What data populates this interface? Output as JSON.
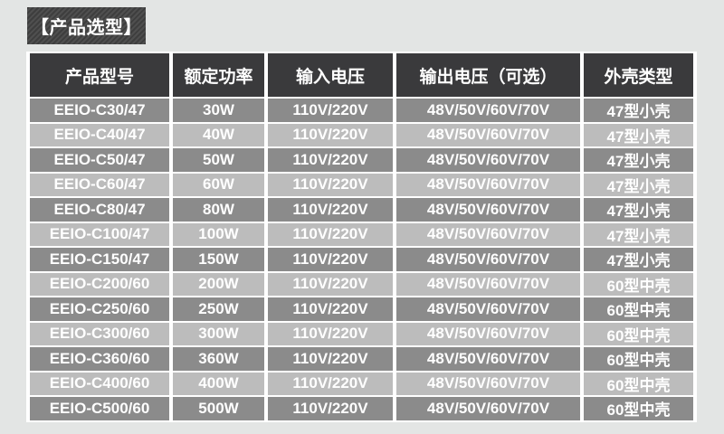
{
  "page": {
    "background": "#e3e5e4"
  },
  "title": {
    "label": "【产品选型】",
    "text_color": "#ffffff",
    "badge_colors": [
      "#3e3e3e",
      "#4f4f4f"
    ]
  },
  "table": {
    "colors": {
      "header_bg": "#3a3a3c",
      "row_dark": "#8b8b8b",
      "row_light": "#bcbcbc",
      "separator": "#ffffff",
      "text": "#ffffff"
    },
    "columns": [
      {
        "key": "model",
        "label": "产品型号"
      },
      {
        "key": "rated_power",
        "label": "额定功率"
      },
      {
        "key": "input_voltage",
        "label": "输入电压"
      },
      {
        "key": "output_voltage",
        "label": "输出电压（可选）"
      },
      {
        "key": "case_type",
        "label": "外壳类型"
      }
    ],
    "rows": [
      [
        "EEIO-C30/47",
        "30W",
        "110V/220V",
        "48V/50V/60V/70V",
        "47型小壳"
      ],
      [
        "EEIO-C40/47",
        "40W",
        "110V/220V",
        "48V/50V/60V/70V",
        "47型小壳"
      ],
      [
        "EEIO-C50/47",
        "50W",
        "110V/220V",
        "48V/50V/60V/70V",
        "47型小壳"
      ],
      [
        "EEIO-C60/47",
        "60W",
        "110V/220V",
        "48V/50V/60V/70V",
        "47型小壳"
      ],
      [
        "EEIO-C80/47",
        "80W",
        "110V/220V",
        "48V/50V/60V/70V",
        "47型小壳"
      ],
      [
        "EEIO-C100/47",
        "100W",
        "110V/220V",
        "48V/50V/60V/70V",
        "47型小壳"
      ],
      [
        "EEIO-C150/47",
        "150W",
        "110V/220V",
        "48V/50V/60V/70V",
        "47型小壳"
      ],
      [
        "EEIO-C200/60",
        "200W",
        "110V/220V",
        "48V/50V/60V/70V",
        "60型中壳"
      ],
      [
        "EEIO-C250/60",
        "250W",
        "110V/220V",
        "48V/50V/60V/70V",
        "60型中壳"
      ],
      [
        "EEIO-C300/60",
        "300W",
        "110V/220V",
        "48V/50V/60V/70V",
        "60型中壳"
      ],
      [
        "EEIO-C360/60",
        "360W",
        "110V/220V",
        "48V/50V/60V/70V",
        "60型中壳"
      ],
      [
        "EEIO-C400/60",
        "400W",
        "110V/220V",
        "48V/50V/60V/70V",
        "60型中壳"
      ],
      [
        "EEIO-C500/60",
        "500W",
        "110V/220V",
        "48V/50V/60V/70V",
        "60型中壳"
      ]
    ]
  }
}
